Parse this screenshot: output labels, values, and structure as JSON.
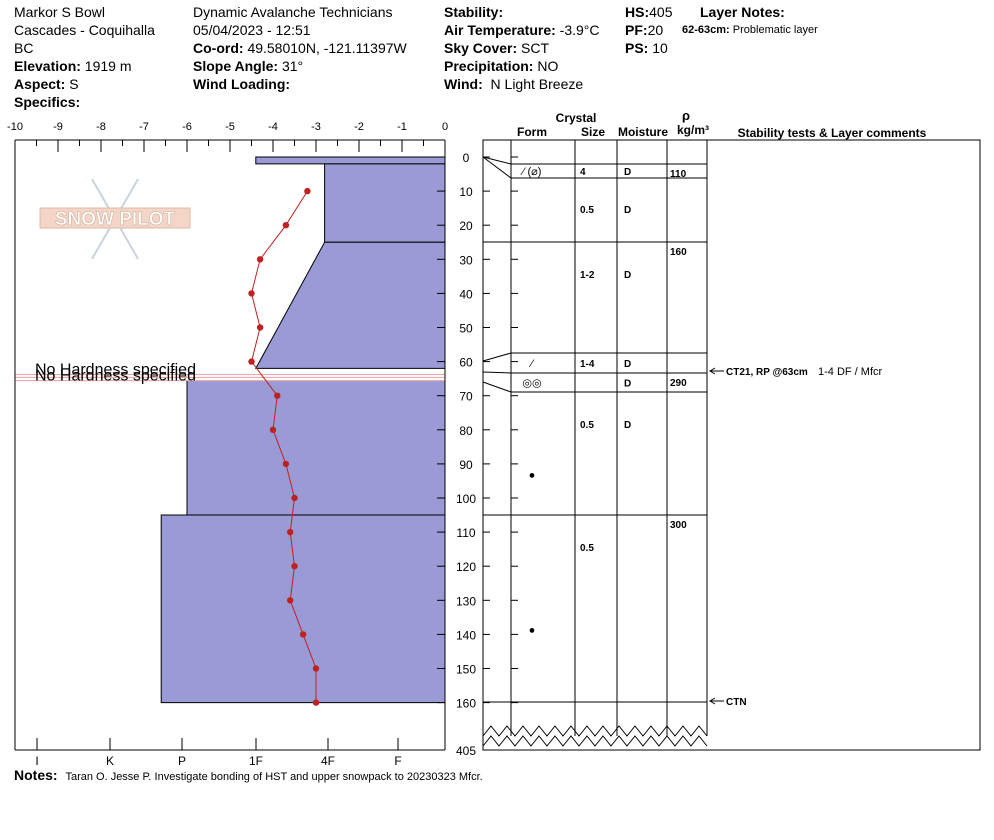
{
  "header": {
    "location_name": "Markor S Bowl",
    "region": "Cascades - Coquihalla",
    "state": "BC",
    "elevation_label": "Elevation:",
    "elevation_value": "1919 m",
    "aspect_label": "Aspect:",
    "aspect_value": "S",
    "specifics_label": "Specifics:",
    "observer": "Dynamic Avalanche Technicians",
    "datetime": "05/04/2023 - 12:51",
    "coord_label": "Co-ord:",
    "coord_value": "49.58010N, -121.11397W",
    "slope_label": "Slope Angle:",
    "slope_value": "31°",
    "wind_loading_label": "Wind Loading:",
    "stability_label": "Stability:",
    "air_temp_label": "Air Temperature:",
    "air_temp_value": "-3.9°C",
    "sky_label": "Sky Cover:",
    "sky_value": "SCT",
    "precip_label": "Precipitation:",
    "precip_value": "NO",
    "wind_label": "Wind:",
    "wind_value": "N Light Breeze",
    "hs_label": "HS:",
    "hs_value": "405",
    "pf_label": "PF:",
    "pf_value": "20",
    "ps_label": "PS:",
    "ps_value": "10",
    "layer_notes_label": "Layer Notes:",
    "layer_note_depth": "62-63cm:",
    "layer_note_text": "Problematic layer"
  },
  "logo_text": "SNOW PILOT",
  "table_headers": {
    "crystal": "Crystal",
    "form": "Form",
    "size": "Size",
    "moisture": "Moisture",
    "rho": "ρ",
    "density_unit": "kg/m³",
    "comments": "Stability tests & Layer comments"
  },
  "no_hardness_text": "No Hardness specified",
  "notes_label": "Notes:",
  "notes_text": "Taran O. Jesse P. Investigate bonding of HST and upper snowpack to 20230323 Mfcr.",
  "colors": {
    "layer_fill": "#9a9ad6",
    "temp_line": "#c02020",
    "no_hardness_band": "#e8a0a0"
  },
  "chart_data": {
    "type": "snow_profile",
    "temperature_axis": {
      "label_ticks": [
        "-10",
        "-9",
        "-8",
        "-7",
        "-6",
        "-5",
        "-4",
        "-3",
        "-2",
        "-1",
        "0"
      ],
      "range": [
        -10,
        0
      ],
      "unit": "°C"
    },
    "hardness_axis": {
      "ticks": [
        "I",
        "K",
        "P",
        "1F",
        "4F",
        "F"
      ]
    },
    "depth_axis": {
      "ticks": [
        "0",
        "10",
        "20",
        "30",
        "40",
        "50",
        "60",
        "70",
        "80",
        "90",
        "100",
        "110",
        "120",
        "130",
        "140",
        "150",
        "160"
      ],
      "range": [
        0,
        160
      ],
      "total_label": "405"
    },
    "temperature_profile": [
      {
        "depth": 10,
        "temp": -3.2
      },
      {
        "depth": 20,
        "temp": -3.7
      },
      {
        "depth": 30,
        "temp": -4.3
      },
      {
        "depth": 40,
        "temp": -4.5
      },
      {
        "depth": 50,
        "temp": -4.3
      },
      {
        "depth": 60,
        "temp": -4.5
      },
      {
        "depth": 70,
        "temp": -3.9
      },
      {
        "depth": 80,
        "temp": -4.0
      },
      {
        "depth": 90,
        "temp": -3.7
      },
      {
        "depth": 100,
        "temp": -3.5
      },
      {
        "depth": 110,
        "temp": -3.6
      },
      {
        "depth": 120,
        "temp": -3.5
      },
      {
        "depth": 130,
        "temp": -3.6
      },
      {
        "depth": 140,
        "temp": -3.3
      },
      {
        "depth": 150,
        "temp": -3.0
      },
      {
        "depth": 160,
        "temp": -3.0
      }
    ],
    "hardness_layers": [
      {
        "top": 0,
        "bottom": 2,
        "top_hardness": -4.4,
        "bottom_hardness": -4.4
      },
      {
        "top": 2,
        "bottom": 25,
        "top_hardness": -2.8,
        "bottom_hardness": -2.8
      },
      {
        "top": 25,
        "bottom": 62,
        "top_hardness": -2.8,
        "bottom_hardness": -4.4
      },
      {
        "top": 65,
        "bottom": 105,
        "top_hardness": -6.0,
        "bottom_hardness": -6.0
      },
      {
        "top": 105,
        "bottom": 160,
        "top_hardness": -6.6,
        "bottom_hardness": -6.6
      }
    ],
    "no_hardness_band": {
      "top": 62,
      "bottom": 65
    },
    "layers": [
      {
        "top": 0,
        "bottom": 3,
        "form": "",
        "size": "",
        "moisture": "",
        "density": ""
      },
      {
        "top": 3,
        "bottom": 6,
        "form": "⁄ (⌀)",
        "size": "4",
        "moisture": "D",
        "density": "110"
      },
      {
        "top": 6,
        "bottom": 25,
        "form": "",
        "size": "0.5",
        "moisture": "D",
        "density": ""
      },
      {
        "top": 25,
        "bottom": 58,
        "form": "",
        "size": "1-2",
        "moisture": "D",
        "density": "160"
      },
      {
        "top": 58,
        "bottom": 63,
        "form": "⁄",
        "size": "1-4",
        "moisture": "D",
        "density": ""
      },
      {
        "top": 63,
        "bottom": 69,
        "form": "◎◎",
        "size": "",
        "moisture": "D",
        "density": "290"
      },
      {
        "top": 69,
        "bottom": 105,
        "form": "●",
        "size": "0.5",
        "moisture": "D",
        "density": ""
      },
      {
        "top": 105,
        "bottom": 160,
        "form": "●",
        "size": "0.5",
        "moisture": "",
        "density": "300"
      }
    ],
    "stability_tests": [
      {
        "depth": 63,
        "label": "CT21, RP @63cm",
        "extra": "1-4 DF / Mfcr"
      },
      {
        "depth": 160,
        "label": "CTN",
        "extra": ""
      }
    ]
  }
}
